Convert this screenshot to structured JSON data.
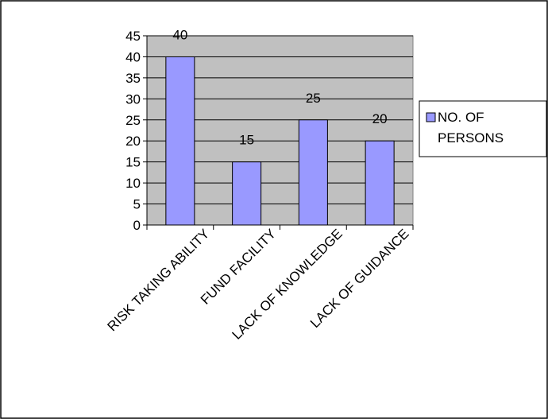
{
  "chart_data": {
    "type": "bar",
    "title": "",
    "xlabel": "",
    "ylabel": "",
    "categories": [
      "RISK TAKING ABILITY",
      "FUND FACILITY",
      "LACK OF KNOWLEDGE",
      "LACK OF GUIDANCE"
    ],
    "series": [
      {
        "name": "NO. OF PERSONS",
        "values": [
          40,
          15,
          25,
          20
        ]
      }
    ],
    "data_labels": [
      "40",
      "15",
      "25",
      "20"
    ],
    "ylim": [
      0,
      45
    ],
    "yticks": [
      "0",
      "5",
      "10",
      "15",
      "20",
      "25",
      "30",
      "35",
      "40",
      "45"
    ],
    "grid": "horizontal",
    "legend_position": "right",
    "legend_lines": [
      "NO. OF",
      "PERSONS"
    ],
    "colors": {
      "bar_fill": "#9999ff",
      "bar_stroke": "#000000",
      "plot_bg": "#c0c0c0",
      "gridline": "#000000",
      "frame": "#000000"
    }
  }
}
